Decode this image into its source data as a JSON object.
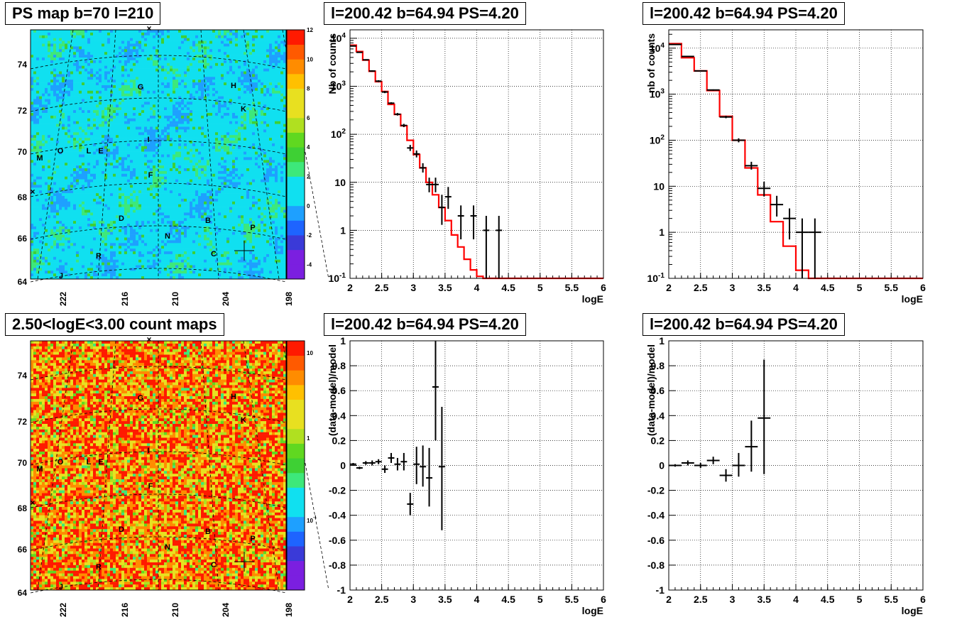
{
  "map_labels": {
    "letters": [
      "G",
      "H",
      "K",
      "I",
      "M",
      "O",
      "L",
      "E",
      "F",
      "D",
      "B",
      "N",
      "P",
      "C",
      "R",
      "J"
    ],
    "lat_ticks": [
      "74",
      "72",
      "70",
      "68",
      "66",
      "64"
    ],
    "lon_ticks": [
      "222",
      "216",
      "210",
      "204",
      "198"
    ]
  },
  "chart_data": [
    {
      "type": "heatmap",
      "panel": "top-left",
      "title": "PS map b=70 l=210",
      "colorbar": {
        "scale": "linear",
        "ticks": [
          "12",
          "10",
          "8",
          "6",
          "4",
          "2",
          "0",
          "-2",
          "-4"
        ],
        "range": [
          -5,
          12
        ]
      },
      "colors": [
        "#7b1fe0",
        "#3a3ad8",
        "#1e64ff",
        "#1ea0ff",
        "#10e0f0",
        "#3de87a",
        "#3ed034",
        "#60d820",
        "#b0e020",
        "#e8e020",
        "#ffc000",
        "#ff8c00",
        "#ff5a00",
        "#ff1a00"
      ]
    },
    {
      "type": "line",
      "panel": "top-middle",
      "title": "l=200.42 b=64.94 PS=4.20",
      "xlabel": "logE",
      "ylabel": "Nb of counts",
      "yscale": "log",
      "xlim": [
        2,
        6
      ],
      "ylim": [
        0.1,
        15000
      ],
      "x_ticks": [
        "2",
        "2.5",
        "3",
        "3.5",
        "4",
        "4.5",
        "5",
        "5.5",
        "6"
      ],
      "y_ticks": [
        {
          "text": "10",
          "sup": "4"
        },
        {
          "text": "10",
          "sup": "3"
        },
        {
          "text": "10",
          "sup": "2"
        },
        {
          "text": "10",
          "sup": ""
        },
        {
          "text": "1",
          "sup": ""
        },
        {
          "text": "10",
          "sup": "-1"
        }
      ],
      "model_step": {
        "edges": [
          2,
          2.1,
          2.2,
          2.3,
          2.4,
          2.5,
          2.6,
          2.7,
          2.8,
          2.9,
          3.0,
          3.1,
          3.2,
          3.3,
          3.4,
          3.5,
          3.6,
          3.7,
          3.8,
          3.9,
          4.0,
          4.1,
          4.2,
          6.0
        ],
        "values": [
          7200,
          5300,
          3500,
          2050,
          1250,
          780,
          420,
          260,
          150,
          75,
          38,
          20,
          10,
          5.5,
          3.0,
          1.6,
          0.8,
          0.45,
          0.25,
          0.15,
          0.11,
          0.1,
          0.1
        ]
      },
      "data_points": [
        {
          "x": 2.05,
          "y": 6900,
          "lo": 6750,
          "hi": 7050,
          "xe": 0.05
        },
        {
          "x": 2.15,
          "y": 5100,
          "lo": 4980,
          "hi": 5220,
          "xe": 0.05
        },
        {
          "x": 2.25,
          "y": 3560,
          "lo": 3460,
          "hi": 3660,
          "xe": 0.05
        },
        {
          "x": 2.35,
          "y": 2080,
          "lo": 2000,
          "hi": 2160,
          "xe": 0.05
        },
        {
          "x": 2.45,
          "y": 1280,
          "lo": 1220,
          "hi": 1340,
          "xe": 0.05
        },
        {
          "x": 2.55,
          "y": 760,
          "lo": 720,
          "hi": 800,
          "xe": 0.05
        },
        {
          "x": 2.65,
          "y": 445,
          "lo": 425,
          "hi": 465,
          "xe": 0.05
        },
        {
          "x": 2.75,
          "y": 262,
          "lo": 246,
          "hi": 278,
          "xe": 0.05
        },
        {
          "x": 2.85,
          "y": 153,
          "lo": 141,
          "hi": 165,
          "xe": 0.05
        },
        {
          "x": 2.95,
          "y": 52,
          "lo": 45,
          "hi": 60,
          "xe": 0.05
        },
        {
          "x": 3.05,
          "y": 39,
          "lo": 33,
          "hi": 46,
          "xe": 0.05
        },
        {
          "x": 3.15,
          "y": 20,
          "lo": 16,
          "hi": 25,
          "xe": 0.05
        },
        {
          "x": 3.25,
          "y": 9,
          "lo": 6.2,
          "hi": 12.5,
          "xe": 0.05
        },
        {
          "x": 3.35,
          "y": 9,
          "lo": 6.2,
          "hi": 12.5,
          "xe": 0.05
        },
        {
          "x": 3.45,
          "y": 3,
          "lo": 1.3,
          "hi": 5.5,
          "xe": 0.05
        },
        {
          "x": 3.55,
          "y": 5,
          "lo": 2.8,
          "hi": 8,
          "xe": 0.05
        },
        {
          "x": 3.75,
          "y": 2,
          "lo": 0.65,
          "hi": 3.3,
          "xe": 0.05
        },
        {
          "x": 3.95,
          "y": 2,
          "lo": 0.65,
          "hi": 3.3,
          "xe": 0.05
        },
        {
          "x": 4.15,
          "y": 1,
          "lo": 0.1,
          "hi": 2,
          "xe": 0.05
        },
        {
          "x": 4.35,
          "y": 1,
          "lo": 0.1,
          "hi": 2,
          "xe": 0.05
        }
      ]
    },
    {
      "type": "line",
      "panel": "top-right",
      "title": "l=200.42 b=64.94 PS=4.20",
      "xlabel": "logE",
      "ylabel": "nb of counts",
      "yscale": "log",
      "xlim": [
        2,
        6
      ],
      "ylim": [
        0.1,
        25000
      ],
      "x_ticks": [
        "2",
        "2.5",
        "3",
        "3.5",
        "4",
        "4.5",
        "5",
        "5.5",
        "6"
      ],
      "y_ticks": [
        {
          "text": "10",
          "sup": "4"
        },
        {
          "text": "10",
          "sup": "3"
        },
        {
          "text": "10",
          "sup": "2"
        },
        {
          "text": "10",
          "sup": ""
        },
        {
          "text": "1",
          "sup": ""
        },
        {
          "text": "10",
          "sup": "-1"
        }
      ],
      "model_step": {
        "edges": [
          2,
          2.2,
          2.4,
          2.6,
          2.8,
          3.0,
          3.2,
          3.4,
          3.6,
          3.8,
          4.0,
          4.2,
          6.0
        ],
        "values": [
          12500,
          6200,
          3200,
          1200,
          330,
          100,
          25,
          6.5,
          1.7,
          0.5,
          0.15,
          0.1
        ]
      },
      "data_points": [
        {
          "x": 2.1,
          "y": 12000,
          "lo": 11800,
          "hi": 12200,
          "xe": 0.1
        },
        {
          "x": 2.3,
          "y": 6600,
          "lo": 6400,
          "hi": 6800,
          "xe": 0.1
        },
        {
          "x": 2.5,
          "y": 3200,
          "lo": 3100,
          "hi": 3300,
          "xe": 0.1
        },
        {
          "x": 2.7,
          "y": 1230,
          "lo": 1190,
          "hi": 1270,
          "xe": 0.1
        },
        {
          "x": 2.9,
          "y": 320,
          "lo": 300,
          "hi": 340,
          "xe": 0.1
        },
        {
          "x": 3.1,
          "y": 100,
          "lo": 90,
          "hi": 110,
          "xe": 0.1
        },
        {
          "x": 3.3,
          "y": 28,
          "lo": 23,
          "hi": 34,
          "xe": 0.1
        },
        {
          "x": 3.5,
          "y": 9,
          "lo": 6,
          "hi": 12.5,
          "xe": 0.1
        },
        {
          "x": 3.7,
          "y": 4,
          "lo": 2.2,
          "hi": 6.2,
          "xe": 0.1
        },
        {
          "x": 3.9,
          "y": 2,
          "lo": 0.7,
          "hi": 3.3,
          "xe": 0.1
        },
        {
          "x": 4.1,
          "y": 1,
          "lo": 0.1,
          "hi": 2,
          "xe": 0.1
        },
        {
          "x": 4.3,
          "y": 1,
          "lo": 0.1,
          "hi": 2,
          "xe": 0.1
        }
      ]
    },
    {
      "type": "heatmap",
      "panel": "bottom-left",
      "title": "2.50<logE<3.00 count maps",
      "colorbar": {
        "scale": "log",
        "ticks": [
          {
            "text": "10",
            "sup": ""
          },
          {
            "text": "1",
            "sup": ""
          },
          {
            "text": "10",
            "sup": "-1"
          }
        ],
        "range": [
          0.03,
          15
        ]
      },
      "colors": [
        "#7b1fe0",
        "#3a3ad8",
        "#1e64ff",
        "#1ea0ff",
        "#10e0f0",
        "#3de87a",
        "#3ed034",
        "#60d820",
        "#b0e020",
        "#e8e020",
        "#ffc000",
        "#ff8c00",
        "#ff5a00",
        "#ff1a00"
      ]
    },
    {
      "type": "scatter",
      "panel": "bottom-middle",
      "title": "l=200.42 b=64.94 PS=4.20",
      "xlabel": "logE",
      "ylabel": "(data-model)/model",
      "xlim": [
        2,
        6
      ],
      "ylim": [
        -1,
        1
      ],
      "x_ticks": [
        "2",
        "2.5",
        "3",
        "3.5",
        "4",
        "4.5",
        "5",
        "5.5",
        "6"
      ],
      "y_ticks": [
        "1",
        "0.8",
        "0.6",
        "0.4",
        "0.2",
        "0",
        "-0.2",
        "-0.4",
        "-0.6",
        "-0.8",
        "-1"
      ],
      "data_points": [
        {
          "x": 2.05,
          "y": 0.01,
          "lo": 0.0,
          "hi": 0.02,
          "xe": 0.05
        },
        {
          "x": 2.15,
          "y": -0.02,
          "lo": -0.03,
          "hi": -0.01,
          "xe": 0.05
        },
        {
          "x": 2.25,
          "y": 0.02,
          "lo": 0.005,
          "hi": 0.035,
          "xe": 0.05
        },
        {
          "x": 2.35,
          "y": 0.02,
          "lo": 0.0,
          "hi": 0.04,
          "xe": 0.05
        },
        {
          "x": 2.45,
          "y": 0.03,
          "lo": 0.01,
          "hi": 0.05,
          "xe": 0.05
        },
        {
          "x": 2.55,
          "y": -0.03,
          "lo": -0.06,
          "hi": 0.0,
          "xe": 0.05
        },
        {
          "x": 2.65,
          "y": 0.06,
          "lo": 0.02,
          "hi": 0.1,
          "xe": 0.05
        },
        {
          "x": 2.75,
          "y": 0.01,
          "lo": -0.04,
          "hi": 0.06,
          "xe": 0.05
        },
        {
          "x": 2.85,
          "y": 0.03,
          "lo": -0.04,
          "hi": 0.1,
          "xe": 0.05
        },
        {
          "x": 2.95,
          "y": -0.31,
          "lo": -0.4,
          "hi": -0.22,
          "xe": 0.05
        },
        {
          "x": 3.05,
          "y": 0.01,
          "lo": -0.15,
          "hi": 0.15,
          "xe": 0.05
        },
        {
          "x": 3.15,
          "y": -0.01,
          "lo": -0.17,
          "hi": 0.16,
          "xe": 0.05
        },
        {
          "x": 3.25,
          "y": -0.1,
          "lo": -0.33,
          "hi": 0.14,
          "xe": 0.05
        },
        {
          "x": 3.35,
          "y": 0.63,
          "lo": 0.2,
          "hi": 1.0,
          "xe": 0.05
        },
        {
          "x": 3.45,
          "y": -0.01,
          "lo": -0.52,
          "hi": 0.47,
          "xe": 0.05
        }
      ]
    },
    {
      "type": "scatter",
      "panel": "bottom-right",
      "title": "l=200.42 b=64.94 PS=4.20",
      "xlabel": "logE",
      "ylabel": "(data-model)/model",
      "xlim": [
        2,
        6
      ],
      "ylim": [
        -1,
        1
      ],
      "x_ticks": [
        "2",
        "2.5",
        "3",
        "3.5",
        "4",
        "4.5",
        "5",
        "5.5",
        "6"
      ],
      "y_ticks": [
        "1",
        "0.8",
        "0.6",
        "0.4",
        "0.2",
        "0",
        "-0.2",
        "-0.4",
        "-0.6",
        "-0.8",
        "-1"
      ],
      "data_points": [
        {
          "x": 2.1,
          "y": 0.0,
          "lo": -0.01,
          "hi": 0.01,
          "xe": 0.1
        },
        {
          "x": 2.3,
          "y": 0.02,
          "lo": 0.0,
          "hi": 0.04,
          "xe": 0.1
        },
        {
          "x": 2.5,
          "y": 0.0,
          "lo": -0.02,
          "hi": 0.02,
          "xe": 0.1
        },
        {
          "x": 2.7,
          "y": 0.04,
          "lo": 0.01,
          "hi": 0.07,
          "xe": 0.1
        },
        {
          "x": 2.9,
          "y": -0.08,
          "lo": -0.13,
          "hi": -0.03,
          "xe": 0.1
        },
        {
          "x": 3.1,
          "y": 0.0,
          "lo": -0.09,
          "hi": 0.1,
          "xe": 0.1
        },
        {
          "x": 3.3,
          "y": 0.15,
          "lo": -0.05,
          "hi": 0.36,
          "xe": 0.1
        },
        {
          "x": 3.5,
          "y": 0.38,
          "lo": -0.07,
          "hi": 0.85,
          "xe": 0.1
        }
      ]
    }
  ]
}
